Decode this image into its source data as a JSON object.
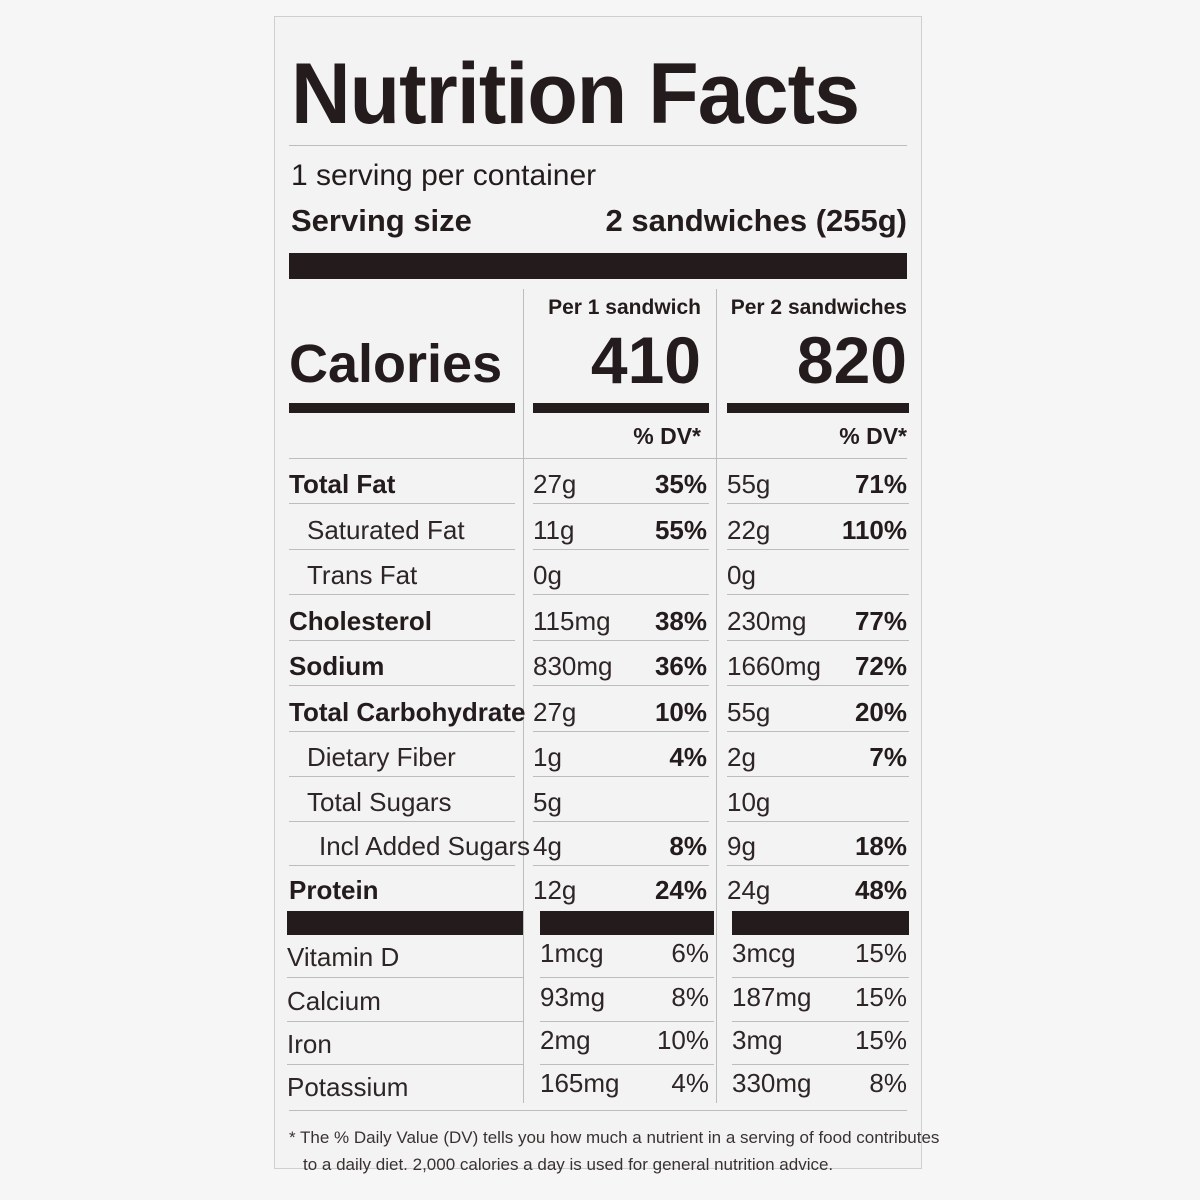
{
  "title": "Nutrition Facts",
  "servings_per_container": "1 serving per container",
  "serving_size_label": "Serving size",
  "serving_size_value": "2 sandwiches (255g)",
  "col1_header": "Per 1 sandwich",
  "col2_header": "Per 2 sandwiches",
  "calories_label": "Calories",
  "calories_col1": "410",
  "calories_col2": "820",
  "dv_header": "% DV*",
  "nutrients": [
    {
      "name": "Total Fat",
      "bold": true,
      "indent": 0,
      "amt1": "27g",
      "pct1": "35%",
      "amt2": "55g",
      "pct2": "71%"
    },
    {
      "name": "Saturated Fat",
      "bold": false,
      "indent": 1,
      "amt1": "11g",
      "pct1": "55%",
      "amt2": "22g",
      "pct2": "110%"
    },
    {
      "name": "Trans Fat",
      "bold": false,
      "indent": 1,
      "amt1": "0g",
      "pct1": "",
      "amt2": "0g",
      "pct2": ""
    },
    {
      "name": "Cholesterol",
      "bold": true,
      "indent": 0,
      "amt1": "115mg",
      "pct1": "38%",
      "amt2": "230mg",
      "pct2": "77%"
    },
    {
      "name": "Sodium",
      "bold": true,
      "indent": 0,
      "amt1": "830mg",
      "pct1": "36%",
      "amt2": "1660mg",
      "pct2": "72%"
    },
    {
      "name": "Total Carbohydrate",
      "bold": true,
      "indent": 0,
      "amt1": "27g",
      "pct1": "10%",
      "amt2": "55g",
      "pct2": "20%"
    },
    {
      "name": "Dietary Fiber",
      "bold": false,
      "indent": 1,
      "amt1": "1g",
      "pct1": "4%",
      "amt2": "2g",
      "pct2": "7%"
    },
    {
      "name": "Total Sugars",
      "bold": false,
      "indent": 1,
      "amt1": "5g",
      "pct1": "",
      "amt2": "10g",
      "pct2": ""
    },
    {
      "name": "Incl Added Sugars",
      "bold": false,
      "indent": 2,
      "amt1": "4g",
      "pct1": "8%",
      "amt2": "9g",
      "pct2": "18%"
    },
    {
      "name": "Protein",
      "bold": true,
      "indent": 0,
      "amt1": "12g",
      "pct1": "24%",
      "amt2": "24g",
      "pct2": "48%"
    }
  ],
  "vitamins": [
    {
      "name": "Vitamin D",
      "amt1": "1mcg",
      "pct1": "6%",
      "amt2": "3mcg",
      "pct2": "15%"
    },
    {
      "name": "Calcium",
      "amt1": "93mg",
      "pct1": "8%",
      "amt2": "187mg",
      "pct2": "15%"
    },
    {
      "name": "Iron",
      "amt1": "2mg",
      "pct1": "10%",
      "amt2": "3mg",
      "pct2": "15%"
    },
    {
      "name": "Potassium",
      "amt1": "165mg",
      "pct1": "4%",
      "amt2": "330mg",
      "pct2": "8%"
    }
  ],
  "footnote_line1": "* The % Daily Value (DV) tells you how much a nutrient in a serving of food contributes",
  "footnote_line2": "to a daily diet. 2,000 calories a day is used for general nutrition advice."
}
